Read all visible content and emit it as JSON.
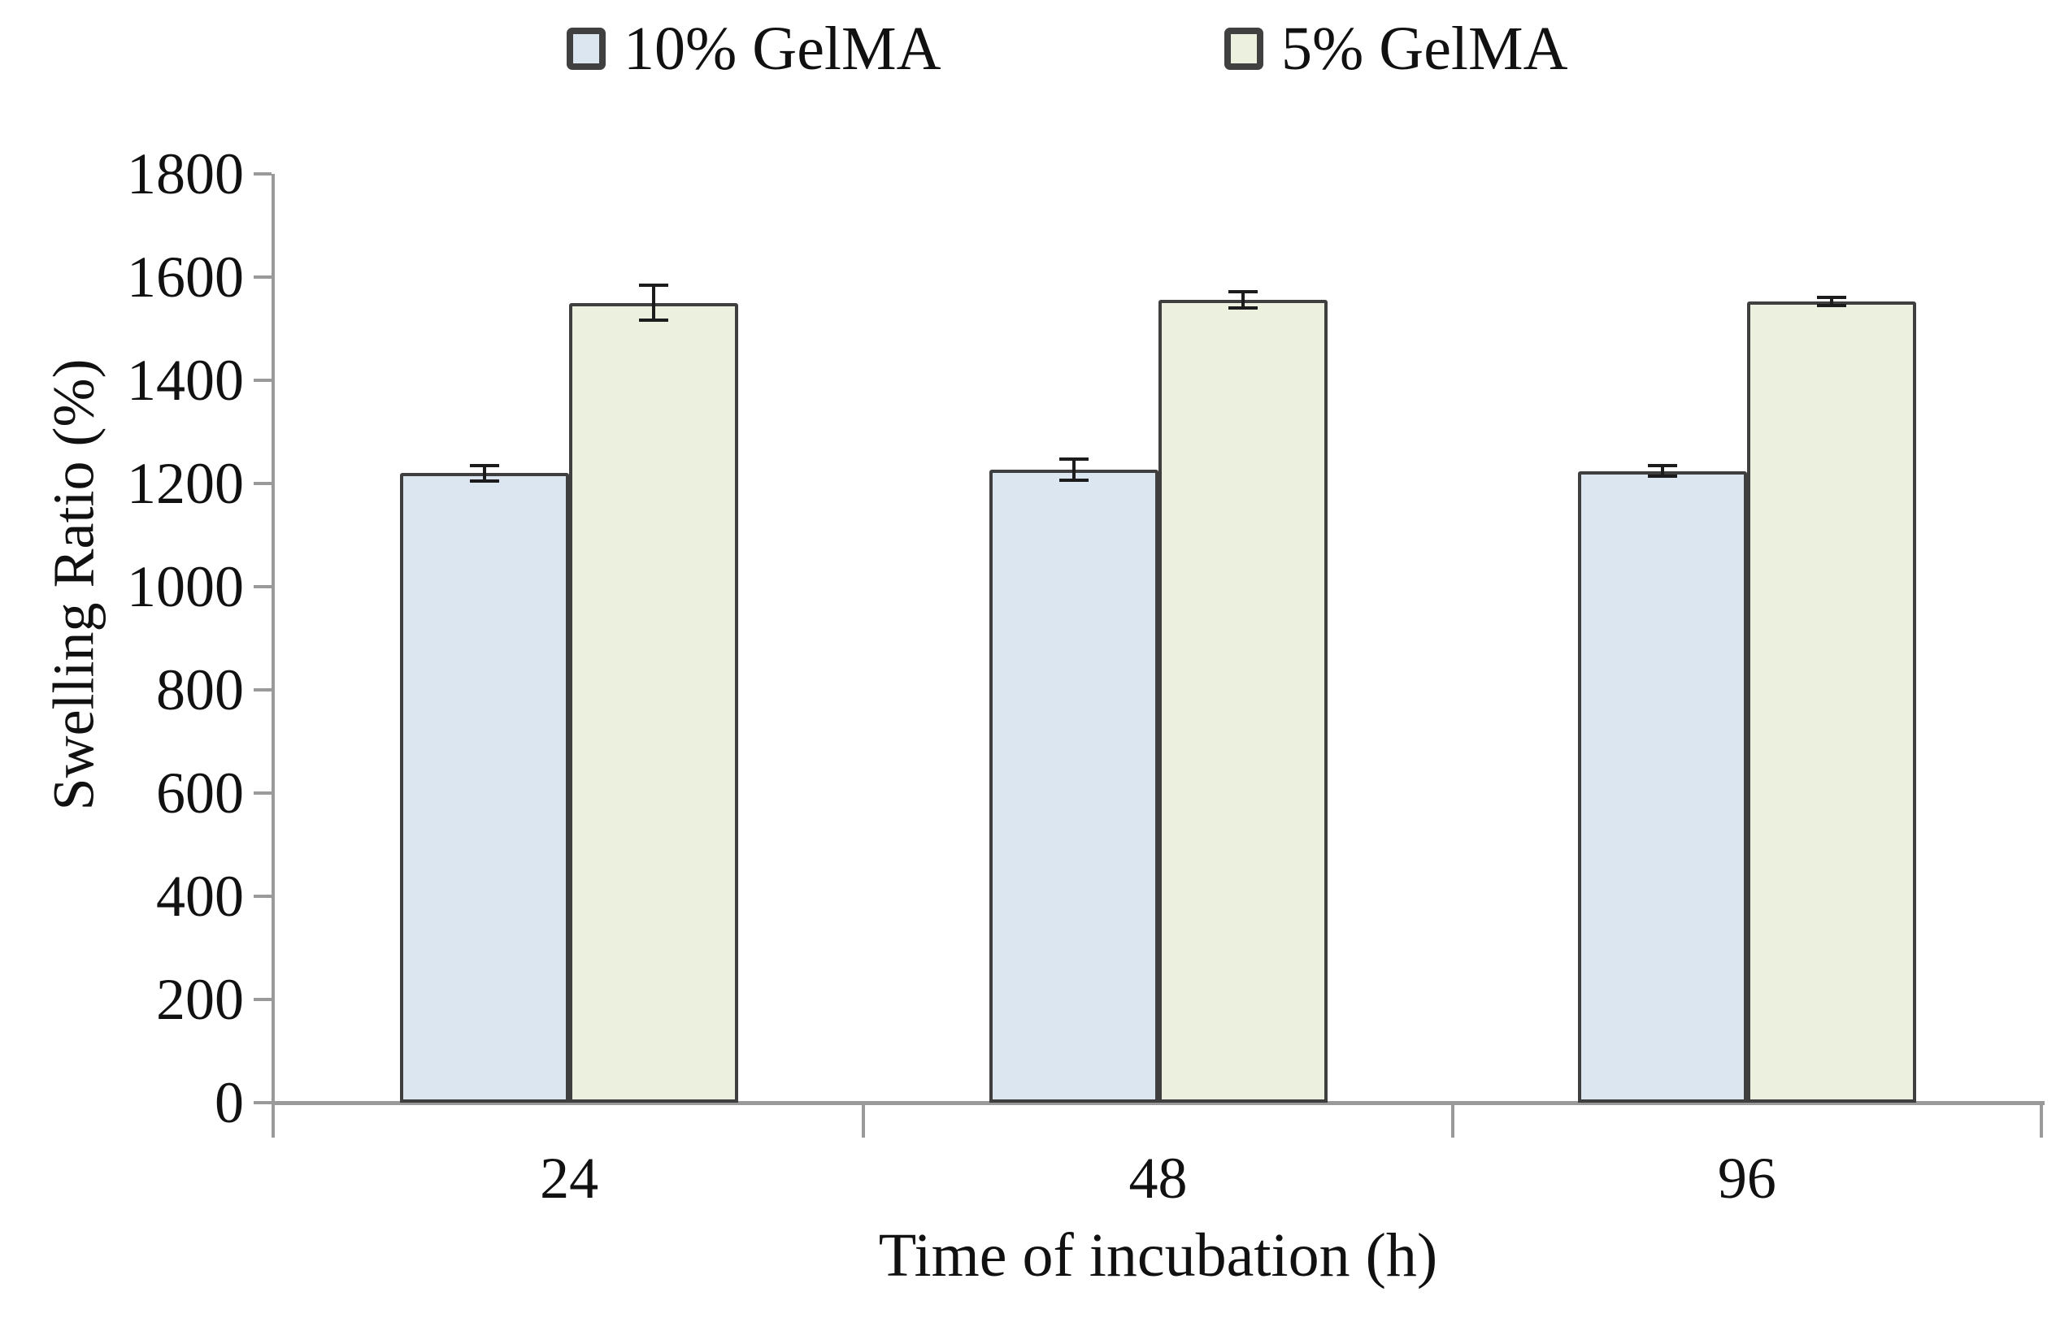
{
  "chart_data": {
    "type": "bar",
    "title": "",
    "categories": [
      "24",
      "48",
      "96"
    ],
    "series": [
      {
        "name": "10% GelMA",
        "color": "#dce6f1",
        "values": [
          1220,
          1227,
          1224
        ],
        "errors": [
          15,
          20,
          10
        ]
      },
      {
        "name": "5% GelMA",
        "color": "#ebf1de",
        "values": [
          1550,
          1556,
          1553
        ],
        "errors": [
          34,
          16,
          8
        ]
      }
    ],
    "xlabel": "Time of incubation (h)",
    "ylabel": "Swelling Ratio (%)",
    "ylim": [
      0,
      1800
    ],
    "ytick_step": 200,
    "yticks": [
      "0",
      "200",
      "400",
      "600",
      "800",
      "1000",
      "1200",
      "1400",
      "1600",
      "1800"
    ],
    "legend_position": "top",
    "grid": false
  },
  "colors": {
    "background": "#ffffff",
    "axis": "#9a9a9a",
    "bar_border": "#3f3f3f",
    "error_bar": "#1c1c1c",
    "text": "#111111"
  }
}
